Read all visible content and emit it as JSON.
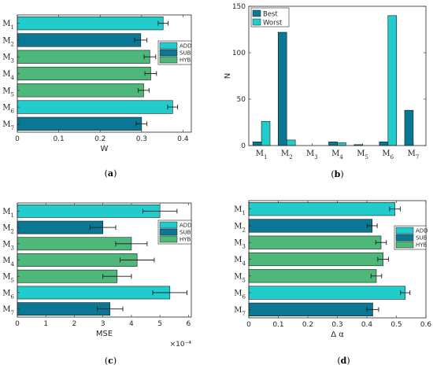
{
  "colors": {
    "ADD": "#22cccc",
    "SUB": "#0a7795",
    "HYB": "#4db87a",
    "Best": "#0a7795",
    "Worst": "#22cccc",
    "axis": "#262626",
    "error": "#1a1a1a"
  },
  "chart_data": [
    {
      "type": "bar",
      "orientation": "horizontal",
      "caption": "a",
      "categories": [
        "M1",
        "M2",
        "M3",
        "M4",
        "M5",
        "M6",
        "M7"
      ],
      "values": [
        0.352,
        0.298,
        0.32,
        0.322,
        0.305,
        0.375,
        0.3
      ],
      "errors": [
        0.012,
        0.015,
        0.014,
        0.014,
        0.013,
        0.012,
        0.013
      ],
      "groups": [
        "ADD",
        "SUB",
        "HYB",
        "HYB",
        "HYB",
        "ADD",
        "SUB"
      ],
      "legend": [
        "ADD",
        "SUB",
        "HYB"
      ],
      "legend_position": "right",
      "xlabel": "W",
      "xlim": [
        0,
        0.42
      ],
      "xticks": [
        "0",
        "0.1",
        "0.2",
        "0.3",
        "0.4"
      ],
      "xtick_values": [
        0,
        0.1,
        0.2,
        0.3,
        0.4
      ]
    },
    {
      "type": "bar",
      "orientation": "vertical",
      "caption": "b",
      "categories": [
        "M1",
        "M2",
        "M3",
        "M4",
        "M5",
        "M6",
        "M7"
      ],
      "series": [
        {
          "name": "Best",
          "values": [
            4,
            122,
            0,
            4,
            1,
            4,
            38
          ]
        },
        {
          "name": "Worst",
          "values": [
            26,
            6,
            0,
            3,
            0,
            140,
            0
          ]
        }
      ],
      "legend_position": "top-left",
      "ylabel": "N",
      "ylim": [
        0,
        150
      ],
      "yticks": [
        "0",
        "50",
        "100",
        "150"
      ],
      "ytick_values": [
        0,
        50,
        100,
        150
      ]
    },
    {
      "type": "bar",
      "orientation": "horizontal",
      "caption": "c",
      "categories": [
        "M1",
        "M2",
        "M3",
        "M4",
        "M5",
        "M6",
        "M7"
      ],
      "values": [
        5.0,
        3.0,
        4.0,
        4.2,
        3.5,
        5.35,
        3.25
      ],
      "errors": [
        0.6,
        0.45,
        0.55,
        0.6,
        0.5,
        0.6,
        0.45
      ],
      "groups": [
        "ADD",
        "SUB",
        "HYB",
        "HYB",
        "HYB",
        "ADD",
        "SUB"
      ],
      "legend": [
        "ADD",
        "SUB",
        "HYB"
      ],
      "legend_position": "right",
      "xlabel": "MSE",
      "xscale_note": "×10⁻⁴",
      "xlim": [
        0,
        6.1
      ],
      "xticks": [
        "0",
        "1",
        "2",
        "3",
        "4",
        "5",
        "6"
      ],
      "xtick_values": [
        0,
        1,
        2,
        3,
        4,
        5,
        6
      ]
    },
    {
      "type": "bar",
      "orientation": "horizontal",
      "caption": "d",
      "categories": [
        "M1",
        "M2",
        "M3",
        "M4",
        "M5",
        "M6",
        "M7"
      ],
      "values": [
        0.495,
        0.418,
        0.448,
        0.455,
        0.432,
        0.53,
        0.42
      ],
      "errors": [
        0.018,
        0.017,
        0.018,
        0.018,
        0.018,
        0.016,
        0.02
      ],
      "groups": [
        "ADD",
        "SUB",
        "HYB",
        "HYB",
        "HYB",
        "ADD",
        "SUB"
      ],
      "legend": [
        "ADD",
        "SUB",
        "HYB"
      ],
      "legend_position": "right",
      "xlabel": "Δ α",
      "xlim": [
        0,
        0.6
      ],
      "xticks": [
        "0",
        "0.1",
        "0.2",
        "0.3",
        "0.4",
        "0.5",
        "0.6"
      ],
      "xtick_values": [
        0,
        0.1,
        0.2,
        0.3,
        0.4,
        0.5,
        0.6
      ]
    }
  ]
}
